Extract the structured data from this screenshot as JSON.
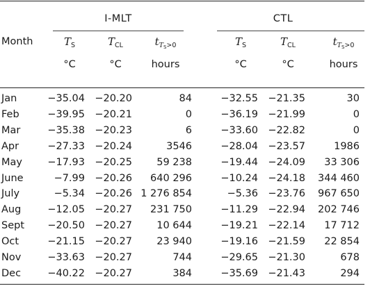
{
  "groups": {
    "imlt": "I-MLT",
    "ctl": "CTL"
  },
  "headers": {
    "month": "Month",
    "ts_symbol": "T",
    "ts_sub": "S",
    "tcl_symbol": "T",
    "tcl_sub": "CL",
    "t_symbol": "t",
    "t_sub_italic": "T",
    "t_sub_sub": "S",
    "t_sub_rest": ">0"
  },
  "units": {
    "temp": "°C",
    "time": "hours"
  },
  "rows": [
    {
      "month": "Jan",
      "imlt_ts": "−35.04",
      "imlt_tcl": "−20.20",
      "imlt_hours": "84",
      "ctl_ts": "−32.55",
      "ctl_tcl": "−21.35",
      "ctl_hours": "30"
    },
    {
      "month": "Feb",
      "imlt_ts": "−39.95",
      "imlt_tcl": "−20.21",
      "imlt_hours": "0",
      "ctl_ts": "−36.19",
      "ctl_tcl": "−21.99",
      "ctl_hours": "0"
    },
    {
      "month": "Mar",
      "imlt_ts": "−35.38",
      "imlt_tcl": "−20.23",
      "imlt_hours": "6",
      "ctl_ts": "−33.60",
      "ctl_tcl": "−22.82",
      "ctl_hours": "0"
    },
    {
      "month": "Apr",
      "imlt_ts": "−27.33",
      "imlt_tcl": "−20.24",
      "imlt_hours": "3546",
      "ctl_ts": "−28.04",
      "ctl_tcl": "−23.57",
      "ctl_hours": "1986"
    },
    {
      "month": "May",
      "imlt_ts": "−17.93",
      "imlt_tcl": "−20.25",
      "imlt_hours": "59 238",
      "ctl_ts": "−19.44",
      "ctl_tcl": "−24.09",
      "ctl_hours": "33 306"
    },
    {
      "month": "June",
      "imlt_ts": "−7.99",
      "imlt_tcl": "−20.26",
      "imlt_hours": "640 296",
      "ctl_ts": "−10.24",
      "ctl_tcl": "−24.18",
      "ctl_hours": "344 460"
    },
    {
      "month": "July",
      "imlt_ts": "−5.34",
      "imlt_tcl": "−20.26",
      "imlt_hours": "1 276 854",
      "ctl_ts": "−5.36",
      "ctl_tcl": "−23.76",
      "ctl_hours": "967 650"
    },
    {
      "month": "Aug",
      "imlt_ts": "−12.05",
      "imlt_tcl": "−20.27",
      "imlt_hours": "231 750",
      "ctl_ts": "−11.29",
      "ctl_tcl": "−22.94",
      "ctl_hours": "202 746"
    },
    {
      "month": "Sept",
      "imlt_ts": "−20.50",
      "imlt_tcl": "−20.27",
      "imlt_hours": "10 644",
      "ctl_ts": "−19.21",
      "ctl_tcl": "−22.14",
      "ctl_hours": "17 712"
    },
    {
      "month": "Oct",
      "imlt_ts": "−21.15",
      "imlt_tcl": "−20.27",
      "imlt_hours": "23 940",
      "ctl_ts": "−19.16",
      "ctl_tcl": "−21.59",
      "ctl_hours": "22 854"
    },
    {
      "month": "Nov",
      "imlt_ts": "−33.63",
      "imlt_tcl": "−20.27",
      "imlt_hours": "744",
      "ctl_ts": "−29.65",
      "ctl_tcl": "−21.30",
      "ctl_hours": "678"
    },
    {
      "month": "Dec",
      "imlt_ts": "−40.22",
      "imlt_tcl": "−20.27",
      "imlt_hours": "384",
      "ctl_ts": "−35.69",
      "ctl_tcl": "−21.43",
      "ctl_hours": "294"
    }
  ]
}
